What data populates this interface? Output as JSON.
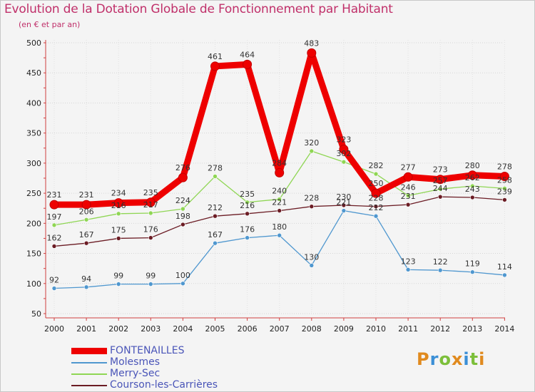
{
  "header": {
    "title": "Evolution de la Dotation Globale de Fonctionnement par Habitant",
    "subtitle": "(en € et par an)"
  },
  "logo": {
    "text": "Proxiti"
  },
  "chart_data": {
    "type": "line",
    "title": "Evolution de la Dotation Globale de Fonctionnement par Habitant",
    "subtitle": "(en € et par an)",
    "xlabel": "",
    "ylabel": "",
    "x": [
      "2000",
      "2001",
      "2002",
      "2003",
      "2004",
      "2005",
      "2006",
      "2007",
      "2008",
      "2009",
      "2010",
      "2011",
      "2012",
      "2013",
      "2014"
    ],
    "ylim": [
      50,
      500
    ],
    "yticks": [
      50,
      100,
      150,
      200,
      250,
      300,
      350,
      400,
      450,
      500
    ],
    "grid": true,
    "legend": "bottom-left",
    "series": [
      {
        "name": "FONTENAILLES",
        "color": "#ee0000",
        "width": 9,
        "values": [
          231,
          231,
          234,
          235,
          276,
          461,
          464,
          284,
          483,
          323,
          250,
          277,
          273,
          280,
          278
        ],
        "labels": [
          "231",
          "231",
          "234",
          "235",
          "276",
          "461",
          "464",
          "284",
          "483",
          "323",
          "250",
          "277",
          "273",
          "280",
          "278"
        ]
      },
      {
        "name": "Molesmes",
        "color": "#4f97cf",
        "width": 1.3,
        "values": [
          92,
          94,
          99,
          99,
          100,
          167,
          176,
          180,
          130,
          221,
          212,
          123,
          122,
          119,
          114
        ],
        "labels": [
          "92",
          "94",
          "99",
          "99",
          "100",
          "167",
          "176",
          "180",
          "130",
          "221",
          "212",
          "123",
          "122",
          "119",
          "114"
        ]
      },
      {
        "name": "Merry-Sec",
        "color": "#8fd654",
        "width": 1.3,
        "values": [
          197,
          206,
          216,
          217,
          224,
          278,
          235,
          240,
          320,
          302,
          282,
          246,
          257,
          262,
          258
        ],
        "labels": [
          "197",
          "206",
          "216",
          "217",
          "224",
          "278",
          "235",
          "240",
          "320",
          "302",
          "282",
          "246",
          "257",
          "262",
          "258"
        ]
      },
      {
        "name": "Courson-les-Carrières",
        "color": "#6b1c24",
        "width": 1.3,
        "values": [
          162,
          167,
          175,
          176,
          198,
          212,
          216,
          221,
          228,
          230,
          228,
          231,
          244,
          243,
          239
        ],
        "labels": [
          "162",
          "167",
          "175",
          "176",
          "198",
          "212",
          "216",
          "221",
          "228",
          "230",
          "228",
          "231",
          "244",
          "243",
          "239"
        ]
      }
    ]
  }
}
